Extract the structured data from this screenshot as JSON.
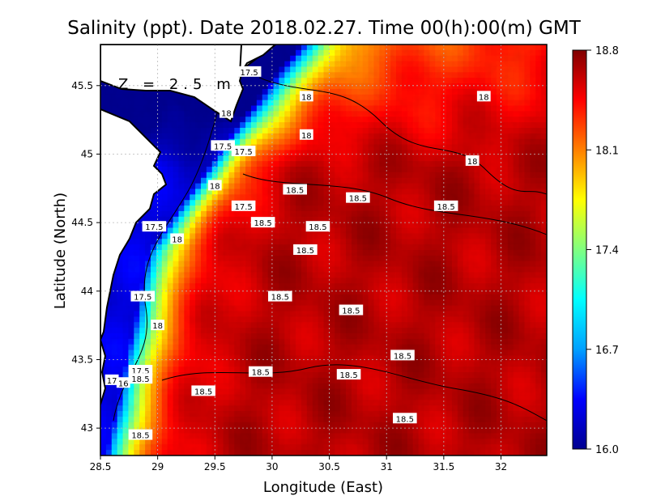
{
  "chart_data": {
    "type": "heatmap",
    "title": "Salinity (ppt). Date 2018.02.27. Time 00(h):00(m) GMT",
    "depth_label": "Z = 2.5 m",
    "xlabel": "Longitude (East)",
    "ylabel": "Latitude (North)",
    "xlim": [
      28.5,
      32.4
    ],
    "ylim": [
      42.8,
      45.8
    ],
    "x_ticks": [
      28.5,
      29,
      29.5,
      30,
      30.5,
      31,
      31.5,
      32
    ],
    "x_tick_labels": [
      "28.5",
      "29",
      "29.5",
      "30",
      "30.5",
      "31",
      "31.5",
      "32"
    ],
    "y_ticks": [
      43,
      43.5,
      44,
      44.5,
      45,
      45.5
    ],
    "y_tick_labels": [
      "43",
      "43.5",
      "44",
      "44.5",
      "45",
      "45.5"
    ],
    "grid": true,
    "colorbar": {
      "min": 16.0,
      "max": 18.8,
      "tick_values": [
        18.8,
        18.1,
        17.4,
        16.7,
        16.0
      ],
      "tick_labels": [
        "18.8",
        "18.1",
        "17.4",
        "16.7",
        "16.0"
      ],
      "colors": [
        "#00008f",
        "#0000ff",
        "#00a0ff",
        "#00ffff",
        "#80ff80",
        "#ffff00",
        "#ff8000",
        "#ff0000",
        "#800000"
      ]
    },
    "contour_labels": [
      {
        "text": "17.5",
        "lon": 29.57,
        "lat": 45.06
      },
      {
        "text": "18",
        "lon": 29.6,
        "lat": 45.3
      },
      {
        "text": "17.5",
        "lon": 29.8,
        "lat": 45.6
      },
      {
        "text": "18",
        "lon": 30.3,
        "lat": 45.42
      },
      {
        "text": "18",
        "lon": 30.3,
        "lat": 45.14
      },
      {
        "text": "18",
        "lon": 31.85,
        "lat": 45.42
      },
      {
        "text": "18",
        "lon": 31.75,
        "lat": 44.95
      },
      {
        "text": "17.5",
        "lon": 29.75,
        "lat": 45.02
      },
      {
        "text": "18",
        "lon": 29.5,
        "lat": 44.77
      },
      {
        "text": "18.5",
        "lon": 30.2,
        "lat": 44.74
      },
      {
        "text": "18.5",
        "lon": 30.75,
        "lat": 44.68
      },
      {
        "text": "18.5",
        "lon": 31.52,
        "lat": 44.62
      },
      {
        "text": "17.5",
        "lon": 29.75,
        "lat": 44.62
      },
      {
        "text": "18.5",
        "lon": 29.92,
        "lat": 44.5
      },
      {
        "text": "18.5",
        "lon": 30.4,
        "lat": 44.47
      },
      {
        "text": "17.5",
        "lon": 28.97,
        "lat": 44.47
      },
      {
        "text": "18",
        "lon": 29.17,
        "lat": 44.38
      },
      {
        "text": "18.5",
        "lon": 30.29,
        "lat": 44.3
      },
      {
        "text": "17.5",
        "lon": 28.87,
        "lat": 43.96
      },
      {
        "text": "18.5",
        "lon": 30.07,
        "lat": 43.96
      },
      {
        "text": "18.5",
        "lon": 30.69,
        "lat": 43.86
      },
      {
        "text": "18",
        "lon": 29.0,
        "lat": 43.75
      },
      {
        "text": "18.5",
        "lon": 31.14,
        "lat": 43.53
      },
      {
        "text": "17.5",
        "lon": 28.85,
        "lat": 43.42
      },
      {
        "text": "18.5",
        "lon": 29.9,
        "lat": 43.41
      },
      {
        "text": "18.5",
        "lon": 30.67,
        "lat": 43.39
      },
      {
        "text": "18.5",
        "lon": 28.85,
        "lat": 43.36
      },
      {
        "text": "17",
        "lon": 28.6,
        "lat": 43.35
      },
      {
        "text": "16",
        "lon": 28.7,
        "lat": 43.33
      },
      {
        "text": "18.5",
        "lon": 29.4,
        "lat": 43.27
      },
      {
        "text": "18.5",
        "lon": 31.16,
        "lat": 43.07
      },
      {
        "text": "18.5",
        "lon": 28.85,
        "lat": 42.95
      }
    ]
  }
}
